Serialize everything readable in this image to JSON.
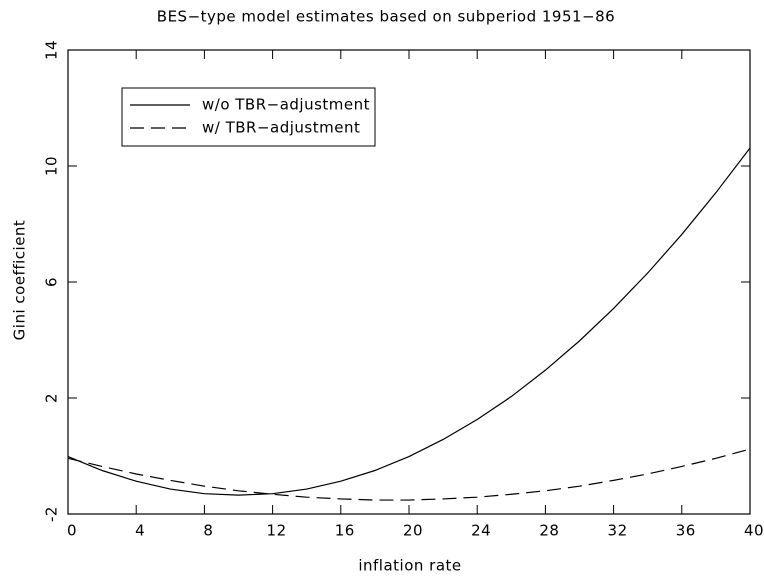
{
  "chart_data": {
    "type": "line",
    "title": "BES−type model estimates based on subperiod 1951−86",
    "x_label": "inflation rate",
    "y_label": "Gini coefficient",
    "x": [
      0,
      2,
      4,
      6,
      8,
      10,
      12,
      14,
      16,
      18,
      20,
      22,
      24,
      26,
      28,
      30,
      32,
      34,
      36,
      38,
      40
    ],
    "series": [
      {
        "name": "w/o TBR−adjustment",
        "color": "#000000",
        "dash": "solid",
        "values": [
          -0.02,
          -0.5,
          -0.87,
          -1.14,
          -1.3,
          -1.35,
          -1.3,
          -1.14,
          -0.87,
          -0.5,
          -0.02,
          0.57,
          1.26,
          2.05,
          2.96,
          3.97,
          5.09,
          6.31,
          7.64,
          9.08,
          10.62
        ]
      },
      {
        "name": "w/ TBR−adjustment",
        "color": "#000000",
        "dash": "dashed",
        "values": [
          -0.08,
          -0.36,
          -0.62,
          -0.84,
          -1.04,
          -1.2,
          -1.32,
          -1.42,
          -1.48,
          -1.52,
          -1.52,
          -1.48,
          -1.42,
          -1.32,
          -1.2,
          -1.04,
          -0.84,
          -0.62,
          -0.36,
          -0.08,
          0.24
        ]
      }
    ],
    "xlim": [
      0,
      40
    ],
    "ylim": [
      -2,
      14
    ],
    "xticks": [
      0,
      4,
      8,
      12,
      16,
      20,
      24,
      28,
      32,
      36,
      40
    ],
    "yticks": [
      -2,
      2,
      6,
      10,
      14
    ],
    "legend": "upper left",
    "grid": false
  }
}
